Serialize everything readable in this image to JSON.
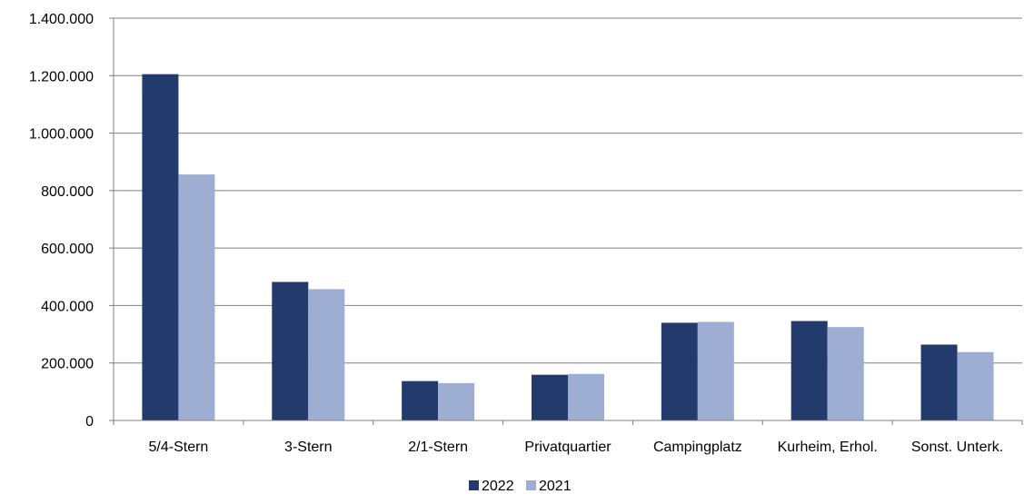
{
  "chart_data": {
    "type": "bar",
    "categories": [
      "5/4-Stern",
      "3-Stern",
      "2/1-Stern",
      "Privatquartier",
      "Campingplatz",
      "Kurheim, Erhol.",
      "Sonst. Unterk."
    ],
    "series": [
      {
        "name": "2022",
        "color": "#233a6c",
        "values": [
          1205000,
          482000,
          137000,
          159000,
          340000,
          346000,
          264000
        ]
      },
      {
        "name": "2021",
        "color": "#9eaed3",
        "values": [
          856000,
          457000,
          130000,
          162000,
          343000,
          325000,
          238000
        ]
      }
    ],
    "yticks": [
      "0",
      "200.000",
      "400.000",
      "600.000",
      "800.000",
      "1.000.000",
      "1.200.000",
      "1.400.000"
    ],
    "ytick_values": [
      0,
      200000,
      400000,
      600000,
      800000,
      1000000,
      1200000,
      1400000
    ],
    "ylim": [
      0,
      1400000
    ],
    "grid": true,
    "legend_position": "bottom-center",
    "gridline_color": "#808080"
  }
}
